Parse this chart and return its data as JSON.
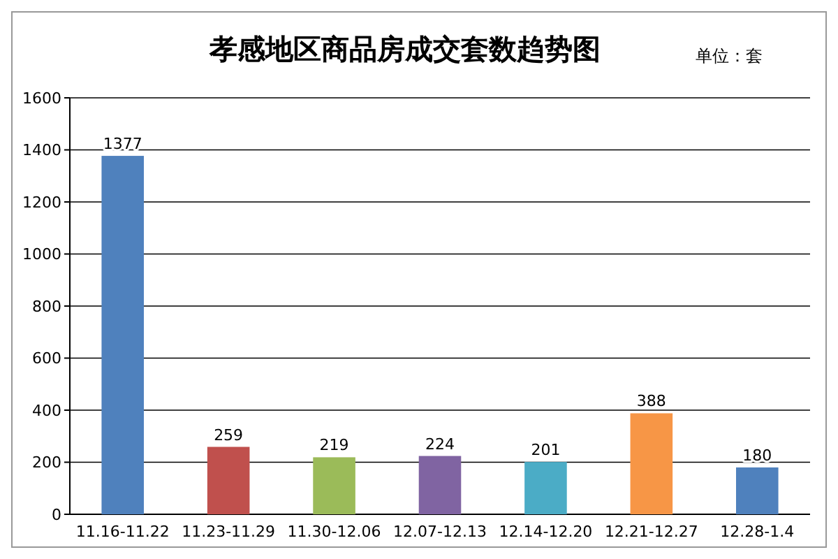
{
  "chart_data": {
    "type": "bar",
    "title": "孝感地区商品房成交套数趋势图",
    "annotations": [
      "单位：套"
    ],
    "categories": [
      "11.16-11.22",
      "11.23-11.29",
      "11.30-12.06",
      "12.07-12.13",
      "12.14-12.20",
      "12.21-12.27",
      "12.28-1.4"
    ],
    "values": [
      1377,
      259,
      219,
      224,
      201,
      388,
      180
    ],
    "colors": [
      "#4f81bd",
      "#c0504d",
      "#9bbb59",
      "#8064a2",
      "#4bacc6",
      "#f79646",
      "#4f81bd"
    ],
    "ylim": [
      0,
      1600
    ],
    "yticks": [
      0,
      200,
      400,
      600,
      800,
      1000,
      1200,
      1400,
      1600
    ],
    "grid": "y",
    "data_labels": true
  }
}
